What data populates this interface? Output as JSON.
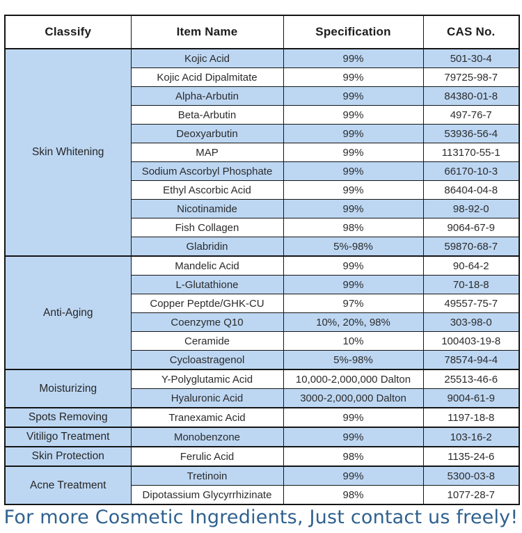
{
  "table": {
    "headers": [
      "Classify",
      "Item Name",
      "Specification",
      "CAS No."
    ],
    "groups": [
      {
        "classify": "Skin Whitening",
        "items": [
          {
            "name": "Kojic Acid",
            "spec": "99%",
            "cas": "501-30-4"
          },
          {
            "name": "Kojic Acid Dipalmitate",
            "spec": "99%",
            "cas": "79725-98-7"
          },
          {
            "name": "Alpha-Arbutin",
            "spec": "99%",
            "cas": "84380-01-8"
          },
          {
            "name": "Beta-Arbutin",
            "spec": "99%",
            "cas": "497-76-7"
          },
          {
            "name": "Deoxyarbutin",
            "spec": "99%",
            "cas": "53936-56-4"
          },
          {
            "name": "MAP",
            "spec": "99%",
            "cas": "113170-55-1"
          },
          {
            "name": "Sodium Ascorbyl Phosphate",
            "spec": "99%",
            "cas": "66170-10-3"
          },
          {
            "name": "Ethyl Ascorbic Acid",
            "spec": "99%",
            "cas": "86404-04-8"
          },
          {
            "name": "Nicotinamide",
            "spec": "99%",
            "cas": "98-92-0"
          },
          {
            "name": "Fish Collagen",
            "spec": "98%",
            "cas": "9064-67-9"
          },
          {
            "name": "Glabridin",
            "spec": "5%-98%",
            "cas": "59870-68-7"
          }
        ]
      },
      {
        "classify": "Anti-Aging",
        "items": [
          {
            "name": "Mandelic Acid",
            "spec": "99%",
            "cas": "90-64-2"
          },
          {
            "name": "L-Glutathione",
            "spec": "99%",
            "cas": "70-18-8"
          },
          {
            "name": "Copper Peptde/GHK-CU",
            "spec": "97%",
            "cas": "49557-75-7"
          },
          {
            "name": "Coenzyme Q10",
            "spec": "10%, 20%, 98%",
            "cas": "303-98-0"
          },
          {
            "name": "Ceramide",
            "spec": "10%",
            "cas": "100403-19-8"
          },
          {
            "name": "Cycloastragenol",
            "spec": "5%-98%",
            "cas": "78574-94-4"
          }
        ]
      },
      {
        "classify": "Moisturizing",
        "items": [
          {
            "name": "Y-Polyglutamic Acid",
            "spec": "10,000-2,000,000 Dalton",
            "cas": "25513-46-6"
          },
          {
            "name": "Hyaluronic Acid",
            "spec": "3000-2,000,000 Dalton",
            "cas": "9004-61-9"
          }
        ]
      },
      {
        "classify": "Spots Removing",
        "items": [
          {
            "name": "Tranexamic Acid",
            "spec": "99%",
            "cas": "1197-18-8"
          }
        ]
      },
      {
        "classify": "Vitiligo Treatment",
        "items": [
          {
            "name": "Monobenzone",
            "spec": "99%",
            "cas": "103-16-2"
          }
        ]
      },
      {
        "classify": "Skin Protection",
        "items": [
          {
            "name": "Ferulic Acid",
            "spec": "98%",
            "cas": "1135-24-6"
          }
        ]
      },
      {
        "classify": "Acne Treatment",
        "items": [
          {
            "name": "Tretinoin",
            "spec": "99%",
            "cas": "5300-03-8"
          },
          {
            "name": "Dipotassium Glycyrrhizinate",
            "spec": "98%",
            "cas": "1077-28-7"
          }
        ]
      }
    ]
  },
  "footer": {
    "text": "For more Cosmetic Ingredients, Just contact us freely!"
  },
  "colors": {
    "row_blue": "#bdd7f3",
    "border": "#141414",
    "footer_text": "#2f618f"
  }
}
